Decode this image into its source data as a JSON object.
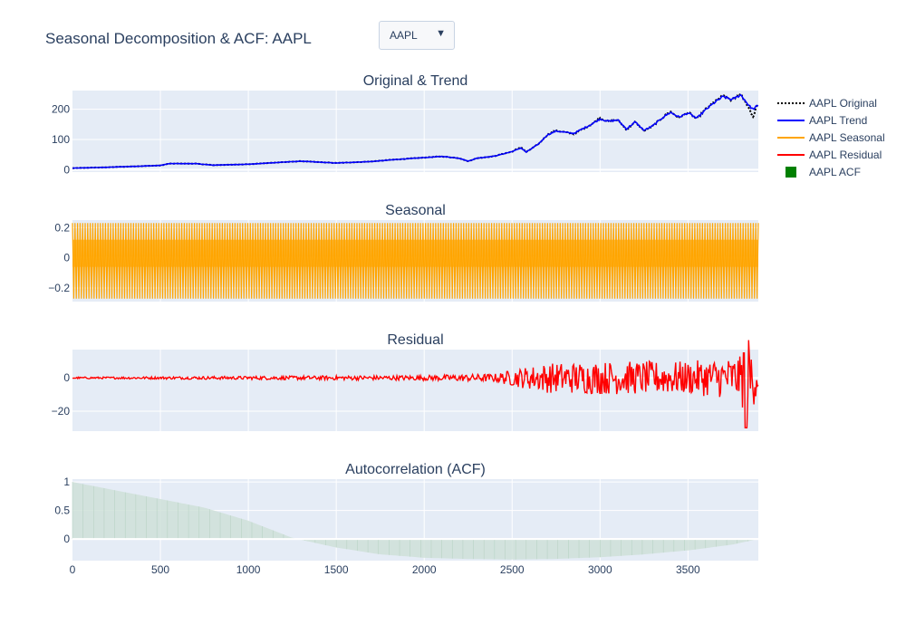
{
  "header": {
    "title": "Seasonal Decomposition & ACF: AAPL",
    "dropdown_value": "AAPL"
  },
  "colors": {
    "plot_bg": "#e5ecf6",
    "original": "#000000",
    "trend": "#0000ff",
    "seasonal": "#ffa500",
    "residual": "#ff0000",
    "acf": "#008000"
  },
  "chart_data": [
    {
      "type": "line",
      "title": "Original & Trend",
      "xlim": [
        0,
        3900
      ],
      "ylim": [
        -8,
        262
      ],
      "yticks": [
        0,
        100,
        200
      ],
      "series": [
        {
          "name": "AAPL Original",
          "dash": "dot",
          "x": [
            0,
            200,
            400,
            500,
            550,
            700,
            800,
            1000,
            1200,
            1300,
            1400,
            1500,
            1700,
            1800,
            1950,
            2050,
            2100,
            2200,
            2250,
            2300,
            2400,
            2500,
            2550,
            2580,
            2650,
            2700,
            2750,
            2850,
            2900,
            2950,
            3000,
            3050,
            3100,
            3150,
            3200,
            3250,
            3300,
            3350,
            3400,
            3450,
            3500,
            3550,
            3600,
            3650,
            3700,
            3750,
            3800,
            3850,
            3870,
            3890
          ],
          "y": [
            5,
            8,
            12,
            14,
            20,
            20,
            15,
            18,
            25,
            28,
            25,
            22,
            27,
            32,
            38,
            42,
            44,
            38,
            28,
            38,
            45,
            60,
            75,
            58,
            85,
            115,
            130,
            118,
            135,
            150,
            170,
            160,
            165,
            132,
            158,
            128,
            145,
            170,
            192,
            172,
            190,
            168,
            200,
            225,
            245,
            230,
            252,
            200,
            172,
            210
          ]
        },
        {
          "name": "AAPL Trend",
          "dash": "solid",
          "x": [
            0,
            200,
            400,
            500,
            550,
            700,
            800,
            1000,
            1200,
            1300,
            1400,
            1500,
            1700,
            1800,
            1950,
            2050,
            2100,
            2200,
            2250,
            2300,
            2400,
            2500,
            2550,
            2580,
            2650,
            2700,
            2750,
            2850,
            2900,
            2950,
            3000,
            3050,
            3100,
            3150,
            3200,
            3250,
            3300,
            3350,
            3400,
            3450,
            3500,
            3550,
            3600,
            3650,
            3700,
            3750,
            3800,
            3850,
            3870,
            3890
          ],
          "y": [
            5,
            8,
            12,
            14,
            20,
            20,
            15,
            18,
            25,
            28,
            25,
            22,
            27,
            32,
            38,
            42,
            44,
            38,
            28,
            38,
            45,
            60,
            72,
            58,
            85,
            115,
            128,
            120,
            135,
            150,
            168,
            160,
            165,
            135,
            158,
            130,
            145,
            170,
            190,
            174,
            188,
            170,
            198,
            222,
            242,
            232,
            248,
            210,
            200,
            210
          ]
        }
      ]
    },
    {
      "type": "line",
      "title": "Seasonal",
      "xlim": [
        0,
        3900
      ],
      "ylim": [
        -0.29,
        0.25
      ],
      "yticks": [
        -0.2,
        0,
        0.2
      ],
      "ytick_labels": [
        "−0.2",
        "0",
        "0.2"
      ],
      "series": [
        {
          "name": "AAPL Seasonal",
          "period": 252,
          "min": -0.27,
          "max": 0.23,
          "x_end": 3900
        }
      ]
    },
    {
      "type": "line",
      "title": "Residual",
      "xlim": [
        0,
        3900
      ],
      "ylim": [
        -32,
        17
      ],
      "yticks": [
        -20,
        0
      ],
      "ytick_labels": [
        "−20",
        "0"
      ],
      "series": [
        {
          "name": "AAPL Residual",
          "amplitude_x": [
            0,
            1000,
            2000,
            2400,
            2550,
            2700,
            3000,
            3500,
            3800,
            3830,
            3900
          ],
          "amplitude_y": [
            0.5,
            1,
            1.5,
            2.5,
            6,
            9,
            10,
            10,
            13,
            30,
            9
          ]
        }
      ]
    },
    {
      "type": "bar",
      "title": "Autocorrelation (ACF)",
      "xlim": [
        0,
        3900
      ],
      "ylim": [
        -0.38,
        1.05
      ],
      "yticks": [
        0,
        0.5,
        1
      ],
      "xticks": [
        0,
        500,
        1000,
        1500,
        2000,
        2500,
        3000,
        3500
      ],
      "series": [
        {
          "name": "AAPL ACF",
          "lag": [
            0,
            250,
            500,
            750,
            1000,
            1250,
            1500,
            1750,
            2000,
            2250,
            2500,
            2750,
            3000,
            3250,
            3500,
            3750,
            3900
          ],
          "value": [
            1.0,
            0.85,
            0.7,
            0.55,
            0.32,
            0.02,
            -0.15,
            -0.27,
            -0.33,
            -0.35,
            -0.36,
            -0.35,
            -0.32,
            -0.27,
            -0.2,
            -0.1,
            0.0
          ]
        }
      ]
    }
  ],
  "legend": [
    {
      "name": "AAPL Original",
      "style": "dot",
      "color": "#000000"
    },
    {
      "name": "AAPL Trend",
      "style": "line",
      "color": "#0000ff"
    },
    {
      "name": "AAPL Seasonal",
      "style": "line",
      "color": "#ffa500"
    },
    {
      "name": "AAPL Residual",
      "style": "line",
      "color": "#ff0000"
    },
    {
      "name": "AAPL ACF",
      "style": "square",
      "color": "#008000"
    }
  ]
}
